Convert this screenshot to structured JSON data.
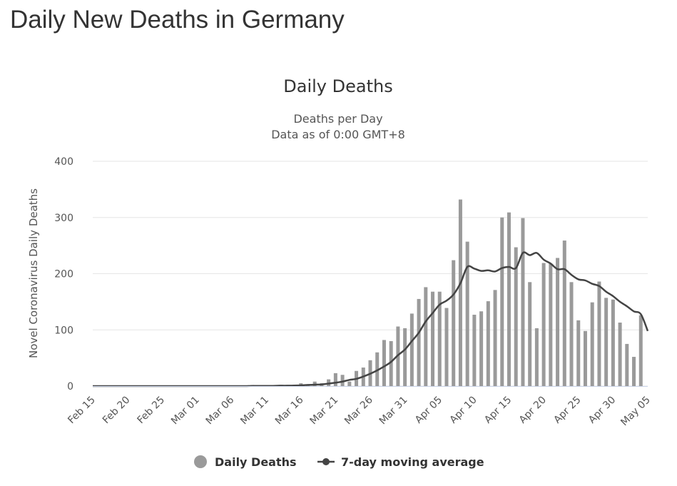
{
  "page": {
    "heading": "Daily New Deaths in Germany"
  },
  "chart_data": {
    "type": "bar",
    "title": "Daily Deaths",
    "subtitle_lines": [
      "Deaths per Day",
      "Data as of 0:00 GMT+8"
    ],
    "ylabel": "Novel Coronavirus Daily Deaths",
    "xlabel": "",
    "ylim": [
      0,
      400
    ],
    "y_ticks": [
      0,
      100,
      200,
      300,
      400
    ],
    "grid": true,
    "legend_position": "bottom-center",
    "categories": [
      "Feb 15",
      "Feb 16",
      "Feb 17",
      "Feb 18",
      "Feb 19",
      "Feb 20",
      "Feb 21",
      "Feb 22",
      "Feb 23",
      "Feb 24",
      "Feb 25",
      "Feb 26",
      "Feb 27",
      "Feb 28",
      "Feb 29",
      "Mar 01",
      "Mar 02",
      "Mar 03",
      "Mar 04",
      "Mar 05",
      "Mar 06",
      "Mar 07",
      "Mar 08",
      "Mar 09",
      "Mar 10",
      "Mar 11",
      "Mar 12",
      "Mar 13",
      "Mar 14",
      "Mar 15",
      "Mar 16",
      "Mar 17",
      "Mar 18",
      "Mar 19",
      "Mar 20",
      "Mar 21",
      "Mar 22",
      "Mar 23",
      "Mar 24",
      "Mar 25",
      "Mar 26",
      "Mar 27",
      "Mar 28",
      "Mar 29",
      "Mar 30",
      "Mar 31",
      "Apr 01",
      "Apr 02",
      "Apr 03",
      "Apr 04",
      "Apr 05",
      "Apr 06",
      "Apr 07",
      "Apr 08",
      "Apr 09",
      "Apr 10",
      "Apr 11",
      "Apr 12",
      "Apr 13",
      "Apr 14",
      "Apr 15",
      "Apr 16",
      "Apr 17",
      "Apr 18",
      "Apr 19",
      "Apr 20",
      "Apr 21",
      "Apr 22",
      "Apr 23",
      "Apr 24",
      "Apr 25",
      "Apr 26",
      "Apr 27",
      "Apr 28",
      "Apr 29",
      "Apr 30",
      "May 01",
      "May 02",
      "May 03",
      "May 04",
      "May 05"
    ],
    "x_tick_labels": [
      "Feb 15",
      "Feb 20",
      "Feb 25",
      "Mar 01",
      "Mar 06",
      "Mar 11",
      "Mar 16",
      "Mar 21",
      "Mar 26",
      "Mar 31",
      "Apr 05",
      "Apr 10",
      "Apr 15",
      "Apr 20",
      "Apr 25",
      "Apr 30",
      "May 05"
    ],
    "series": [
      {
        "name": "Daily Deaths",
        "type": "bar",
        "color": "#9a9a9a",
        "values": [
          0,
          0,
          0,
          0,
          0,
          0,
          0,
          0,
          0,
          0,
          0,
          0,
          0,
          0,
          0,
          0,
          0,
          0,
          0,
          0,
          0,
          0,
          0,
          2,
          0,
          1,
          0,
          2,
          0,
          1,
          5,
          3,
          8,
          5,
          12,
          23,
          20,
          8,
          27,
          33,
          46,
          60,
          82,
          80,
          106,
          103,
          129,
          155,
          176,
          168,
          168,
          139,
          224,
          332,
          257,
          127,
          133,
          151,
          171,
          300,
          309,
          247,
          299,
          185,
          103,
          219,
          218,
          228,
          259,
          185,
          117,
          98,
          149,
          186,
          157,
          154,
          113,
          75,
          52,
          126,
          0
        ]
      },
      {
        "name": "7-day moving average",
        "type": "line",
        "color": "#444444",
        "values": [
          0,
          0,
          0,
          0,
          0,
          0,
          0,
          0,
          0,
          0,
          0,
          0,
          0,
          0,
          0,
          0,
          0,
          0,
          0,
          0,
          0,
          0,
          0,
          0.3,
          0.3,
          0.4,
          0.4,
          0.7,
          0.7,
          1,
          1.3,
          2,
          2.5,
          3,
          4.5,
          6,
          8,
          11,
          13,
          17,
          22,
          28,
          35,
          43,
          55,
          65,
          80,
          95,
          115,
          130,
          145,
          152,
          163,
          183,
          212,
          209,
          205,
          206,
          204,
          210,
          212,
          210,
          237,
          233,
          237,
          225,
          218,
          208,
          208,
          198,
          190,
          188,
          182,
          178,
          168,
          160,
          150,
          142,
          133,
          128,
          98
        ]
      }
    ]
  }
}
